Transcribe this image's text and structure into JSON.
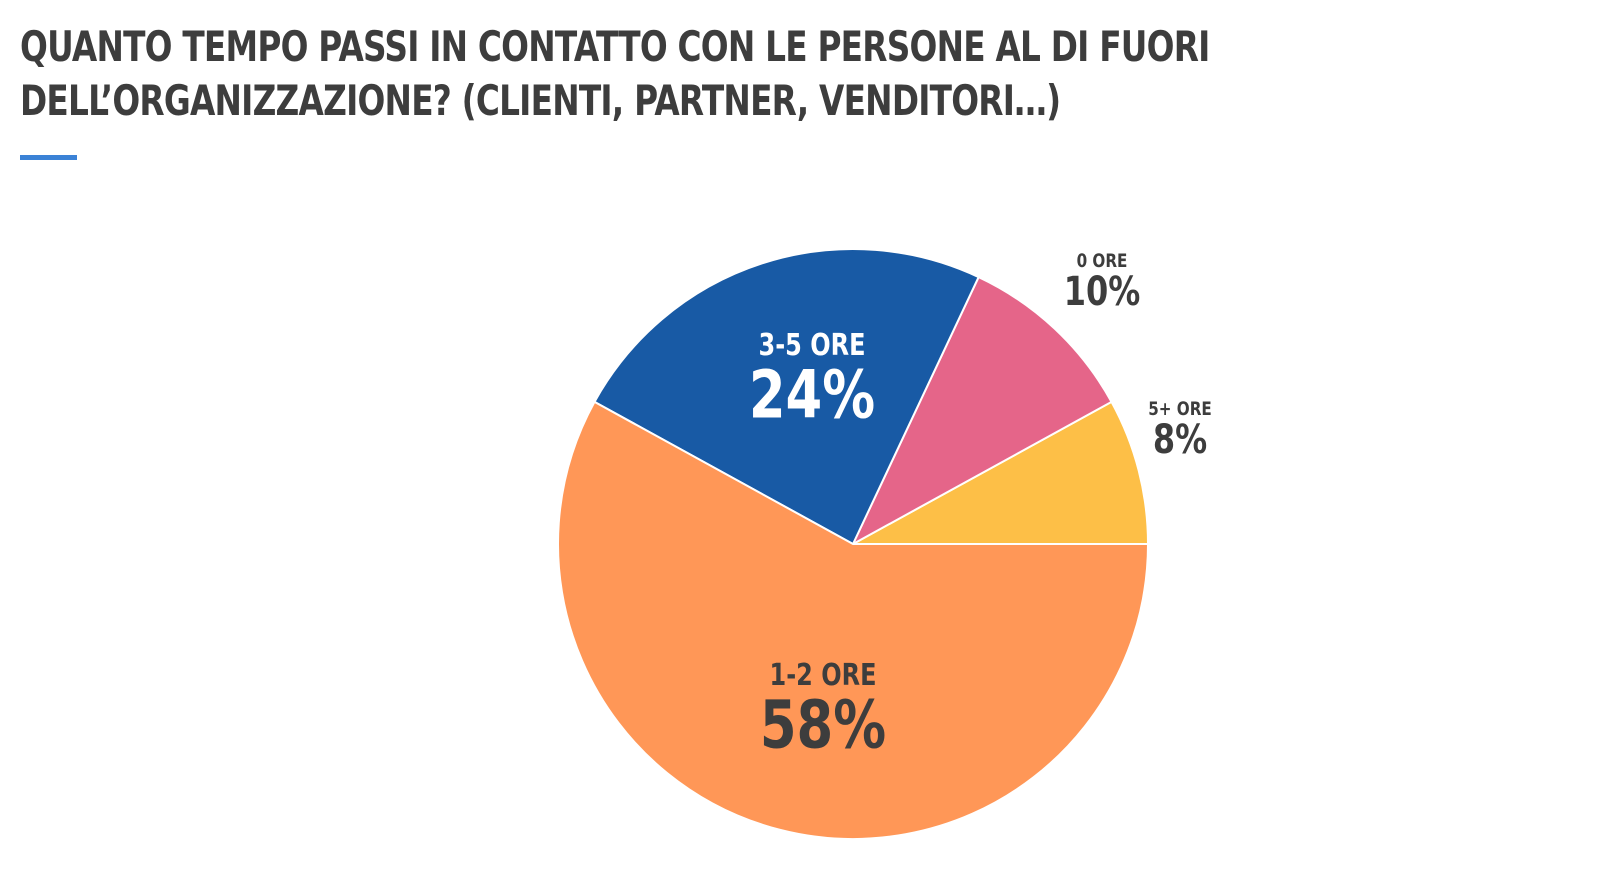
{
  "title": {
    "line1": "Quanto tempo passi in contatto con le persone al di fuori",
    "line2": "dell’organizzazione? (clienti, partner, venditori…)"
  },
  "colors": {
    "accent": "#3b82d6",
    "text_dark": "#3d3d3d",
    "text_light": "#ffffff"
  },
  "chart_data": {
    "type": "pie",
    "title": "Quanto tempo passi in contatto con le persone al di fuori dell’organizzazione? (clienti, partner, venditori…)",
    "slices": [
      {
        "label": "5+ ore",
        "value": 8,
        "display": "8%",
        "color": "#fdbf47",
        "label_color": "#3d3d3d",
        "label_inside": false
      },
      {
        "label": "0 ore",
        "value": 10,
        "display": "10%",
        "color": "#e56589",
        "label_color": "#3d3d3d",
        "label_inside": false
      },
      {
        "label": "3-5 ore",
        "value": 24,
        "display": "24%",
        "color": "#185aa5",
        "label_color": "#ffffff",
        "label_inside": true
      },
      {
        "label": "1-2 ore",
        "value": 58,
        "display": "58%",
        "color": "#ff9757",
        "label_color": "#3d3d3d",
        "label_inside": true
      }
    ],
    "start": "3 o'clock",
    "direction": "counterclockwise"
  }
}
